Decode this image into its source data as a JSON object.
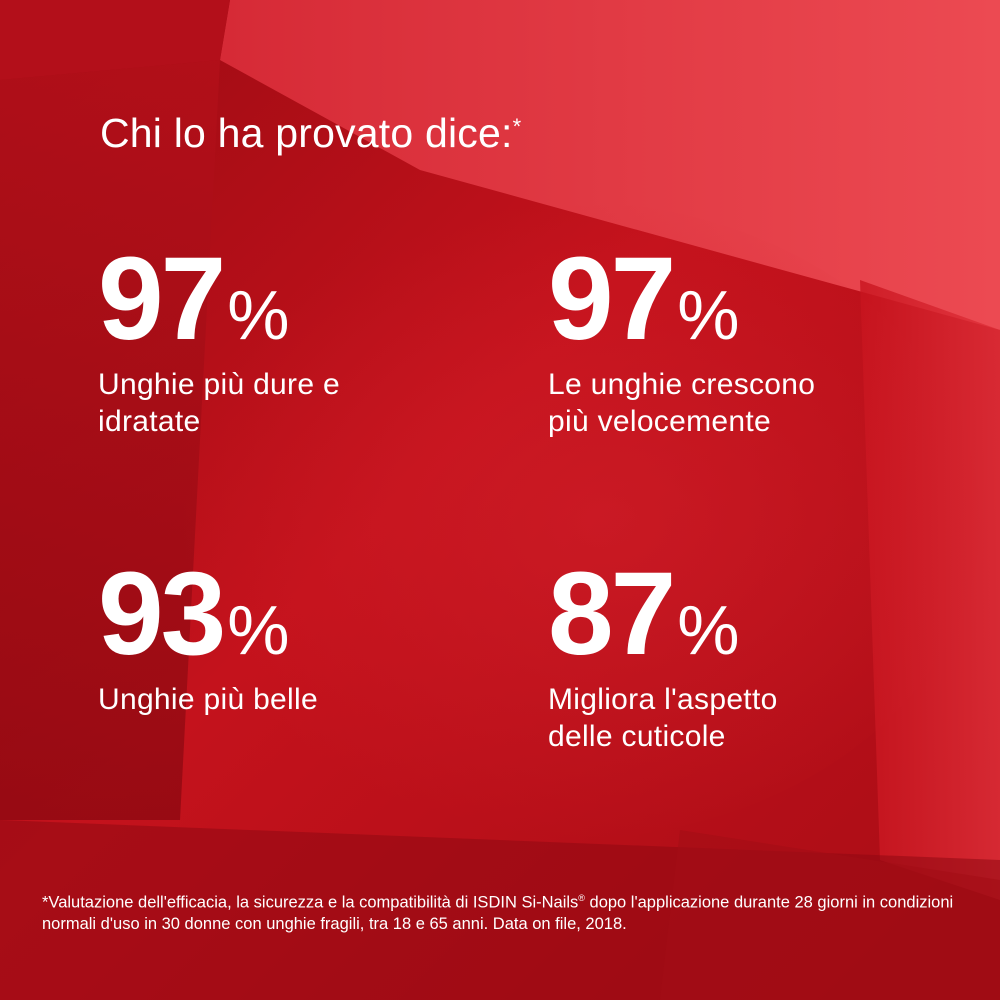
{
  "background": {
    "base_color": "#b00f16",
    "highlight_color": "#e2404a",
    "shadow_color": "#7a0710"
  },
  "title": {
    "text": "Chi lo ha provato dice:",
    "asterisk": "*"
  },
  "stats": [
    {
      "value": "97",
      "unit": "%",
      "label_line1": "Unghie più dure e",
      "label_line2": "idratate"
    },
    {
      "value": "97",
      "unit": "%",
      "label_line1": "Le unghie crescono",
      "label_line2": "più velocemente"
    },
    {
      "value": "93",
      "unit": "%",
      "label_line1": "Unghie più belle",
      "label_line2": ""
    },
    {
      "value": "87",
      "unit": "%",
      "label_line1": "Migliora l'aspetto",
      "label_line2": "delle cuticole"
    }
  ],
  "footnote": {
    "part1": "*Valutazione dell'efficacia, la sicurezza e la compatibilità di ISDIN Si-Nails",
    "registered": "®",
    "part2": " dopo l'applicazione durante 28 giorni in condizioni normali d'uso in 30 donne con unghie fragili, tra 18 e 65 anni. Data on file, 2018."
  }
}
